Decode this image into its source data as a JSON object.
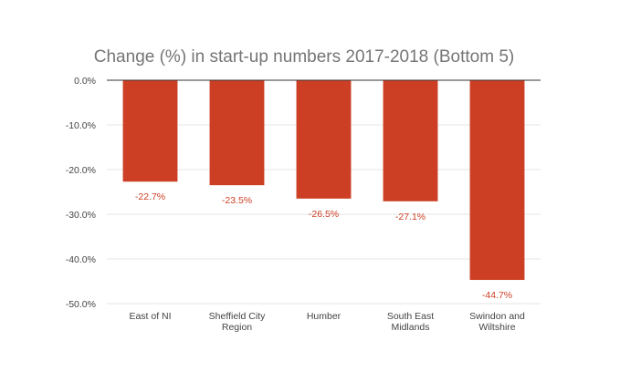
{
  "chart_data": {
    "type": "bar",
    "title": "Change (%) in start-up numbers 2017-2018 (Bottom 5)",
    "categories": [
      [
        "East of NI"
      ],
      [
        "Sheffield City",
        "Region"
      ],
      [
        "Humber"
      ],
      [
        "South East",
        "Midlands"
      ],
      [
        "Swindon and",
        "Wiltshire"
      ]
    ],
    "values": [
      -22.7,
      -23.5,
      -26.5,
      -27.1,
      -44.7
    ],
    "data_labels": [
      "-22.7%",
      "-23.5%",
      "-26.5%",
      "-27.1%",
      "-44.7%"
    ],
    "ylim": [
      -50,
      0
    ],
    "yticks": [
      0,
      -10,
      -20,
      -30,
      -40,
      -50
    ],
    "ytick_labels": [
      "0.0%",
      "-10.0%",
      "-20.0%",
      "-30.0%",
      "-40.0%",
      "-50.0%"
    ],
    "grid": true,
    "legend": "none",
    "bar_color": "#cc3f24",
    "label_color": "#cc3f24"
  }
}
